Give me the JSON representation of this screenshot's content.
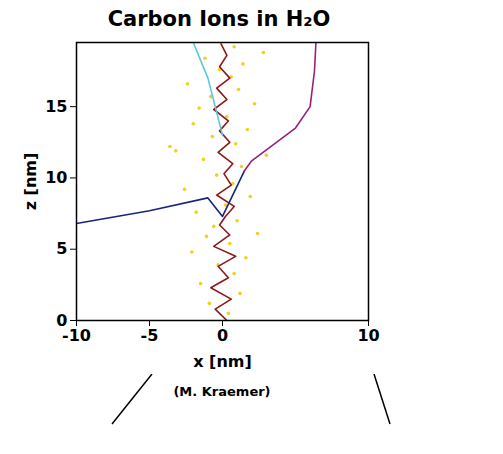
{
  "chart_data": {
    "type": "line",
    "title": "Carbon Ions in H₂O",
    "x_label": "x [nm]",
    "y_label": "z [nm]",
    "caption": "(M. Kraemer)",
    "xlim": [
      -10,
      10
    ],
    "xticks": [
      -10,
      -5,
      0,
      10
    ],
    "ylim": [
      0,
      19.5
    ],
    "yticks": [
      0,
      5,
      10,
      15
    ],
    "grid": false,
    "series": [
      {
        "type": "scatter",
        "color": "#f0d020",
        "x": [
          0.4,
          -0.9,
          1.2,
          -1.5,
          0.8,
          -0.3,
          1.6,
          -2.1,
          0.5,
          -1.1,
          2.4,
          -0.6,
          1.0,
          -1.8,
          0.2,
          1.9,
          -2.6,
          0.7,
          -0.4,
          1.3,
          -1.3,
          3.0,
          -3.2,
          0.9,
          -0.7,
          1.7,
          -2.0,
          0.3,
          -1.6,
          2.2,
          -0.8,
          1.1,
          -2.4,
          0.6,
          -0.2,
          1.4,
          -1.2,
          2.8,
          -3.6,
          0.8
        ],
        "values": [
          0.5,
          1.2,
          1.9,
          2.6,
          3.3,
          3.9,
          4.4,
          4.8,
          5.4,
          5.9,
          6.1,
          6.6,
          7.0,
          7.6,
          8.1,
          8.7,
          9.2,
          9.6,
          10.2,
          10.8,
          11.3,
          11.6,
          11.9,
          12.4,
          12.9,
          13.4,
          13.8,
          14.3,
          14.9,
          15.2,
          15.7,
          16.2,
          16.6,
          17.1,
          17.6,
          18.0,
          18.4,
          18.8,
          12.2,
          19.2
        ]
      },
      {
        "type": "line",
        "color": "#8b1a1a",
        "x": [
          0.3,
          -0.5,
          0.6,
          -0.8,
          0.4,
          -0.3,
          0.9,
          -0.6,
          0.5,
          -0.2,
          0.2,
          0.8,
          -0.4,
          0.6,
          0.1,
          0.7,
          -0.3,
          0.5,
          -0.2,
          0.4,
          -0.6,
          0.3,
          -0.4,
          0.5,
          -0.2,
          0.3,
          -0.1
        ],
        "values": [
          0,
          0.8,
          1.5,
          2.3,
          3.0,
          3.8,
          4.5,
          5.2,
          6.0,
          6.7,
          7.3,
          8.0,
          8.8,
          9.5,
          10.3,
          11.0,
          11.8,
          12.5,
          13.3,
          14.0,
          14.8,
          15.5,
          16.3,
          17.0,
          17.8,
          18.6,
          19.4
        ]
      },
      {
        "type": "line",
        "color": "#1a237e",
        "x": [
          -10,
          -5,
          -1,
          0,
          1.5
        ],
        "values": [
          6.8,
          7.7,
          8.6,
          7.3,
          10.5
        ]
      },
      {
        "type": "line",
        "color": "#9c1f7a",
        "x": [
          1.5,
          2.0,
          5.0,
          6.0,
          6.3,
          6.4
        ],
        "values": [
          10.5,
          11.2,
          13.5,
          15.0,
          17.5,
          19.5
        ]
      },
      {
        "type": "line",
        "color": "#5bc8d8",
        "x": [
          -2.0,
          -1.0,
          -0.5,
          0.0
        ],
        "values": [
          19.5,
          17.0,
          15.0,
          13.0
        ]
      }
    ]
  }
}
